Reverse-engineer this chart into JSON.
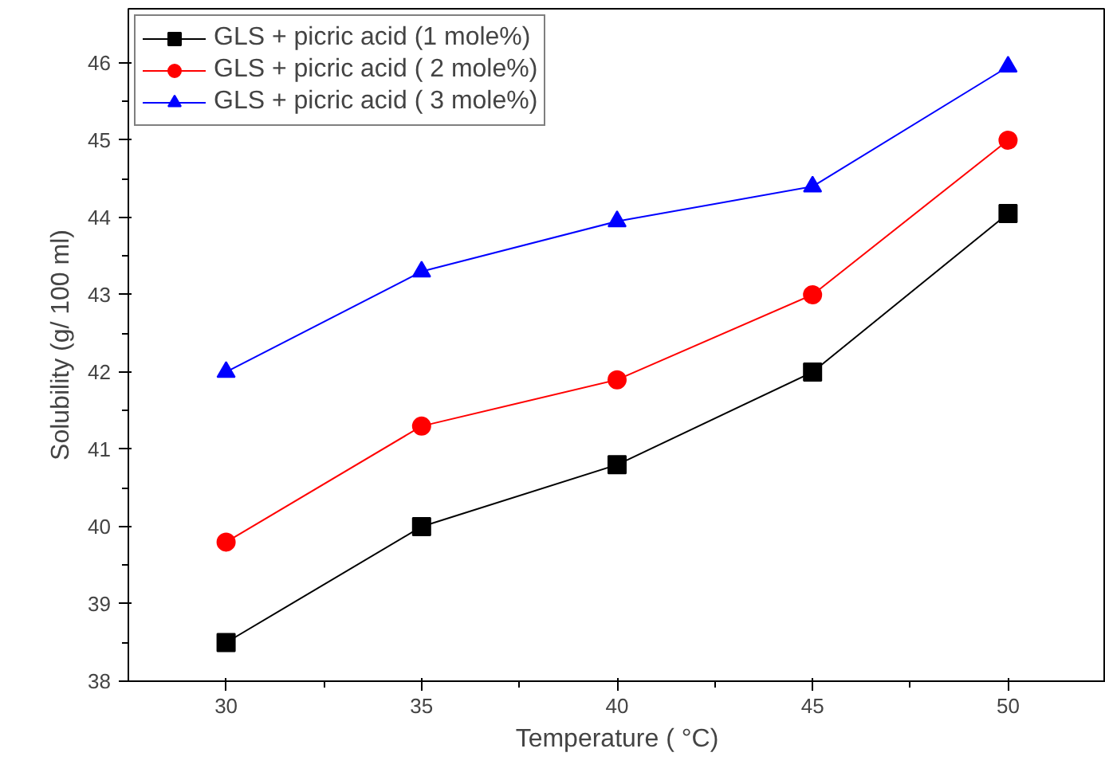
{
  "chart_data": {
    "type": "line",
    "xlabel": "Temperature ( °C)",
    "ylabel": "Solubility (g/ 100 ml)",
    "x": [
      30,
      35,
      40,
      45,
      50
    ],
    "series": [
      {
        "name": "GLS + picric acid (1 mole%)",
        "color": "#000000",
        "marker": "square",
        "values": [
          38.5,
          40.0,
          40.8,
          42.0,
          44.05
        ]
      },
      {
        "name": "GLS + picric acid ( 2 mole%)",
        "color": "#ff0000",
        "marker": "circle",
        "values": [
          39.8,
          41.3,
          41.9,
          43.0,
          45.0
        ]
      },
      {
        "name": "GLS + picric acid ( 3 mole%)",
        "color": "#0000ff",
        "marker": "triangle",
        "values": [
          42.0,
          43.3,
          43.95,
          44.4,
          45.95
        ]
      }
    ],
    "xlim": [
      27.5,
      52.5
    ],
    "xticks": [
      30,
      35,
      40,
      45,
      50
    ],
    "ylim": [
      38,
      46.7
    ],
    "yticks": [
      38,
      39,
      40,
      41,
      42,
      43,
      44,
      45,
      46
    ],
    "grid": false,
    "legend": "top left",
    "line_style": "solid"
  }
}
